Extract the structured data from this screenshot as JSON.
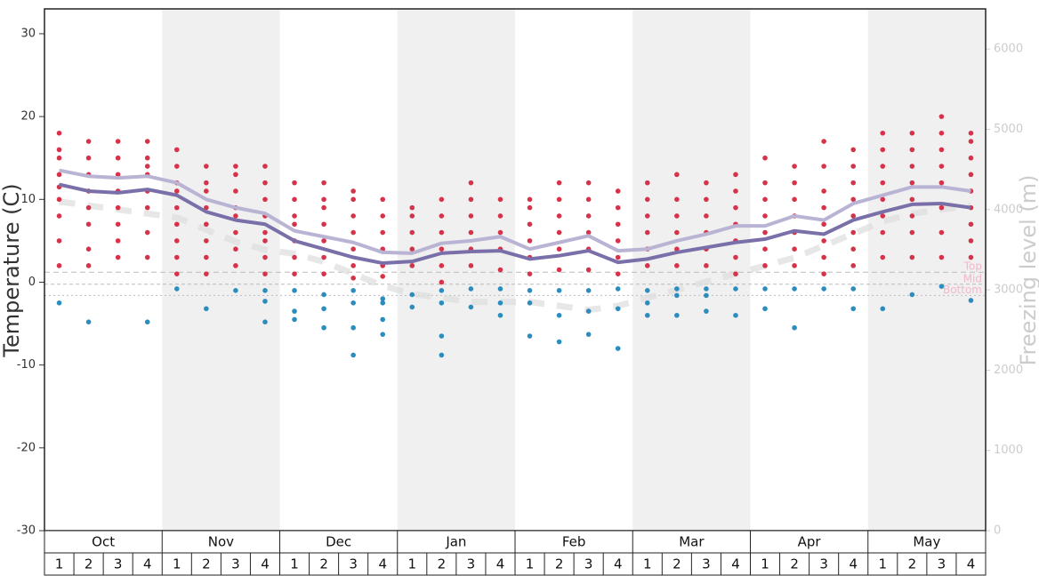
{
  "chart_data": {
    "type": "scatter",
    "y_label": "Temperature (C)",
    "y2_label": "Freezing level (m)",
    "months": [
      "Oct",
      "Nov",
      "Dec",
      "Jan",
      "Feb",
      "Mar",
      "Apr",
      "May"
    ],
    "weeks": [
      "1",
      "2",
      "3",
      "4"
    ],
    "ylim": [
      -30,
      33
    ],
    "yticks": [
      -30,
      -20,
      -10,
      0,
      10,
      20,
      30
    ],
    "y2lim": [
      0,
      6500
    ],
    "y2ticks": [
      0,
      1000,
      2000,
      3000,
      4000,
      5000,
      6000
    ],
    "shade_color": "#f0f0f0",
    "above_color": "#d6334a",
    "below_color": "#2b8cbe",
    "points": [
      [
        18,
        16,
        15,
        13,
        11.5,
        10,
        8,
        5,
        2,
        -2.5
      ],
      [
        17,
        15,
        13,
        11,
        9,
        7,
        4,
        2,
        -4.8
      ],
      [
        17,
        15,
        13,
        11,
        9,
        7,
        5,
        3
      ],
      [
        17,
        15,
        14,
        13,
        11,
        9,
        6,
        3,
        -4.8
      ],
      [
        16,
        14,
        12,
        11,
        9,
        7,
        5,
        3,
        1,
        -0.8
      ],
      [
        14,
        12,
        11,
        9,
        7,
        5,
        3,
        1,
        -3.2
      ],
      [
        14,
        13,
        11,
        9,
        8,
        6,
        4,
        2,
        -1
      ],
      [
        14,
        12,
        10,
        8,
        6,
        5,
        3,
        1,
        -1,
        -2.3,
        -4.8
      ],
      [
        12,
        10,
        8,
        7,
        5,
        3,
        1,
        -1,
        -3.5,
        -4.5
      ],
      [
        12,
        10,
        9,
        7,
        5,
        3,
        1,
        -1.5,
        -3.2,
        -5.5
      ],
      [
        11,
        10,
        8,
        6,
        4,
        2,
        0.5,
        -1,
        -2.5,
        -5.5,
        -8.8
      ],
      [
        10,
        8,
        6,
        4,
        2,
        0.7,
        -2,
        -2.5,
        -4.5,
        -6.3
      ],
      [
        9,
        8,
        6,
        4,
        2,
        -1.5,
        -3
      ],
      [
        10,
        8,
        6,
        4,
        2,
        0,
        -1,
        -2.5,
        -6.5,
        -8.8
      ],
      [
        12,
        10,
        8,
        6,
        4,
        2,
        -0.8,
        -3
      ],
      [
        10,
        8,
        6,
        4,
        1.5,
        -0.8,
        -2.5,
        -4
      ],
      [
        10,
        9,
        7,
        5,
        3,
        1,
        -1,
        -2.5,
        -6.5
      ],
      [
        12,
        10,
        8,
        6,
        4,
        1.5,
        -1,
        -4,
        -7.2
      ],
      [
        12,
        10,
        8,
        6,
        4,
        1.5,
        -1,
        -3.5,
        -6.3
      ],
      [
        11,
        9,
        7,
        5,
        3,
        1,
        -0.8,
        -3.2,
        -8
      ],
      [
        12,
        10,
        8,
        6,
        4,
        2,
        -1,
        -2.5,
        -4
      ],
      [
        13,
        10,
        8,
        6,
        4,
        2,
        -0.8,
        -1.6,
        -4
      ],
      [
        12,
        10,
        8,
        6,
        4,
        2,
        -0.8,
        -1.6,
        -3.5
      ],
      [
        13,
        11,
        9,
        7,
        5,
        3,
        1,
        -0.8,
        -4
      ],
      [
        15,
        12,
        10,
        8,
        6,
        4,
        2,
        -0.8,
        -3.2
      ],
      [
        14,
        12,
        10,
        8,
        6,
        4,
        2,
        -0.8,
        -5.5
      ],
      [
        17,
        14,
        11,
        9,
        7,
        5,
        3,
        1,
        -0.8
      ],
      [
        16,
        14,
        12,
        10,
        8,
        6,
        4,
        2,
        -0.8,
        -3.2
      ],
      [
        18,
        16,
        14,
        12,
        10,
        8,
        6,
        3,
        -3.2
      ],
      [
        18,
        16,
        14,
        12,
        10,
        8,
        6,
        3,
        -1.5
      ],
      [
        20,
        18,
        16,
        14,
        12,
        9,
        6,
        3,
        -0.5
      ],
      [
        18,
        17,
        15,
        13,
        11,
        9,
        7,
        5,
        3,
        -2.2
      ]
    ],
    "series": [
      {
        "color": "#b9b3d4",
        "values": [
          13.5,
          12.8,
          12.6,
          12.8,
          12.0,
          10.0,
          9.0,
          8.3,
          6.2,
          5.5,
          4.8,
          3.6,
          3.5,
          4.7,
          5.0,
          5.5,
          4.0,
          4.8,
          5.6,
          3.8,
          4.0,
          5.0,
          5.8,
          6.8,
          6.8,
          8.0,
          7.5,
          9.5,
          10.5,
          11.5,
          11.5,
          11.0
        ]
      },
      {
        "color": "#7a6fa8",
        "values": [
          11.8,
          11.0,
          10.8,
          11.2,
          10.5,
          8.5,
          7.5,
          7.0,
          5.0,
          4.0,
          3.0,
          2.3,
          2.5,
          3.5,
          3.7,
          3.8,
          2.8,
          3.2,
          3.8,
          2.4,
          2.8,
          3.6,
          4.2,
          4.8,
          5.2,
          6.2,
          5.8,
          7.5,
          8.5,
          9.4,
          9.5,
          9.0
        ]
      },
      {
        "color": "#dddddd",
        "axis": "y2",
        "values": [
          4100,
          4050,
          4000,
          3950,
          3900,
          3750,
          3600,
          3500,
          3450,
          3350,
          3200,
          3050,
          2950,
          2900,
          2850,
          2850,
          2850,
          2800,
          2750,
          2800,
          2900,
          3000,
          3100,
          3200,
          3300,
          3400,
          3550,
          3700,
          3850,
          3950,
          4000,
          4050
        ]
      }
    ],
    "elevations": [
      {
        "label": "Top",
        "value": 3220
      },
      {
        "label": "Mid",
        "value": 3070
      },
      {
        "label": "Bottom",
        "value": 2930
      }
    ]
  }
}
